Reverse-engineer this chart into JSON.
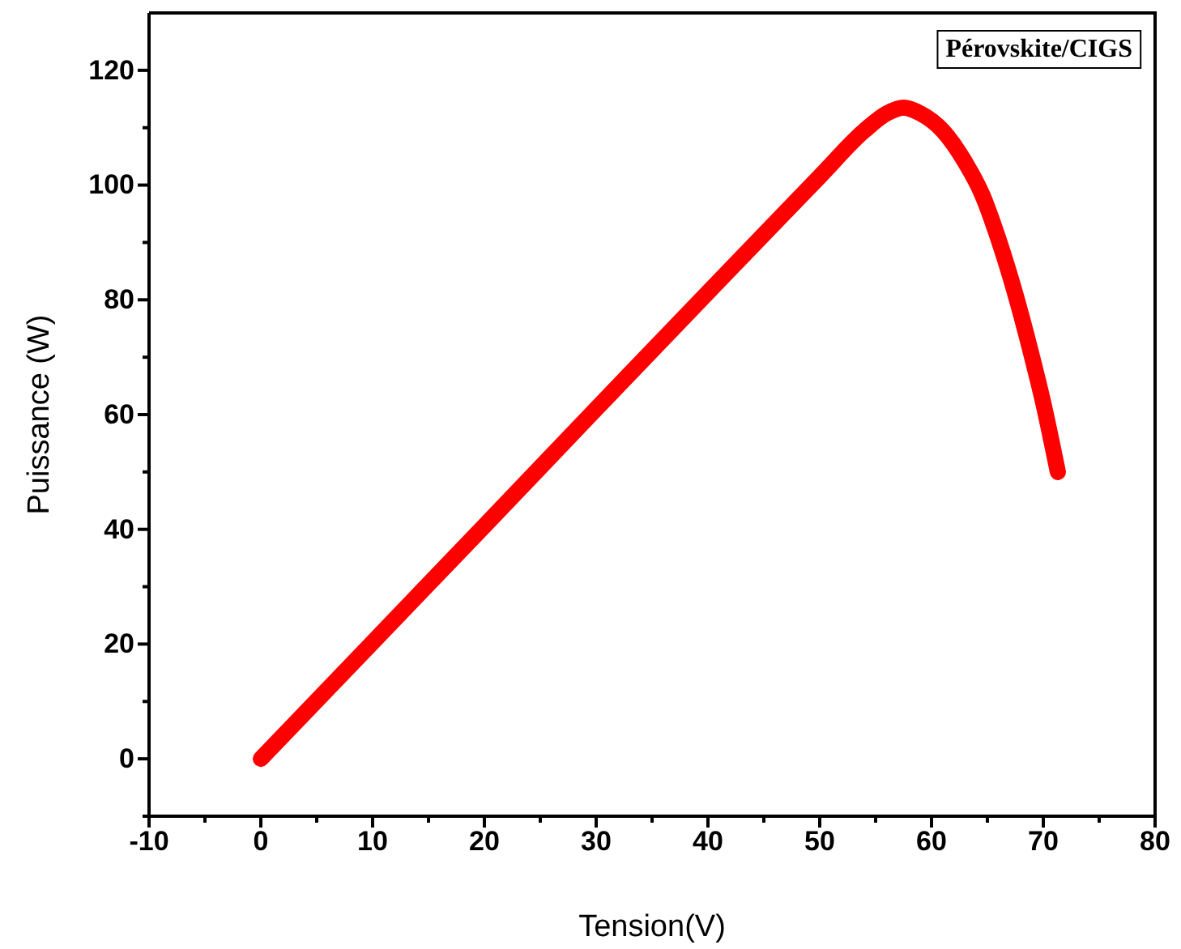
{
  "chart_data": {
    "type": "line",
    "xlabel": "Tension(V)",
    "ylabel": "Puissance (W)",
    "annotations": [
      "Pérovskite/CIGS"
    ],
    "xlim": [
      -10,
      80
    ],
    "ylim": [
      -10,
      130
    ],
    "xticks": [
      -10,
      {
        "value": -5,
        "label": null
      },
      0,
      {
        "value": 5,
        "label": null
      },
      10,
      {
        "value": 15,
        "label": null
      },
      20,
      {
        "value": 25,
        "label": null
      },
      30,
      {
        "value": 35,
        "label": null
      },
      40,
      {
        "value": 45,
        "label": null
      },
      50,
      {
        "value": 55,
        "label": null
      },
      60,
      {
        "value": 65,
        "label": null
      },
      70,
      {
        "value": 75,
        "label": null
      },
      80
    ],
    "yticks": [
      {
        "value": -10,
        "label": null
      },
      0,
      {
        "value": 10,
        "label": null
      },
      20,
      {
        "value": 30,
        "label": null
      },
      40,
      {
        "value": 50,
        "label": null
      },
      60,
      {
        "value": 70,
        "label": null
      },
      80,
      {
        "value": 90,
        "label": null
      },
      100,
      {
        "value": 110,
        "label": null
      },
      120
    ],
    "grid": false,
    "line_style": "solid",
    "series": [
      {
        "color": "#ff0000",
        "x": [
          0,
          10,
          20,
          30,
          40,
          50,
          54,
          56,
          57.5,
          59,
          61,
          63,
          64.5,
          66,
          67.5,
          69,
          70,
          71.3
        ],
        "values": [
          0,
          20.3,
          40.6,
          61,
          81.3,
          101.5,
          109.5,
          112.5,
          113.5,
          112.5,
          109.5,
          104,
          98.5,
          90.5,
          81,
          70,
          62,
          50
        ]
      }
    ]
  }
}
